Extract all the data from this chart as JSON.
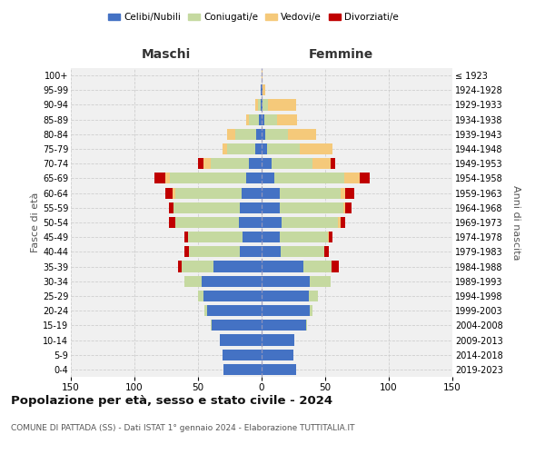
{
  "age_groups": [
    "0-4",
    "5-9",
    "10-14",
    "15-19",
    "20-24",
    "25-29",
    "30-34",
    "35-39",
    "40-44",
    "45-49",
    "50-54",
    "55-59",
    "60-64",
    "65-69",
    "70-74",
    "75-79",
    "80-84",
    "85-89",
    "90-94",
    "95-99",
    "100+"
  ],
  "birth_years": [
    "2019-2023",
    "2014-2018",
    "2009-2013",
    "2004-2008",
    "1999-2003",
    "1994-1998",
    "1989-1993",
    "1984-1988",
    "1979-1983",
    "1974-1978",
    "1969-1973",
    "1964-1968",
    "1959-1963",
    "1954-1958",
    "1949-1953",
    "1944-1948",
    "1939-1943",
    "1934-1938",
    "1929-1933",
    "1924-1928",
    "≤ 1923"
  ],
  "colors": {
    "celibi": "#4472c4",
    "coniugati": "#c5d9a0",
    "vedovi": "#f5c97a",
    "divorziati": "#c00000"
  },
  "maschi": {
    "celibi": [
      30,
      31,
      33,
      39,
      43,
      46,
      47,
      38,
      17,
      15,
      18,
      17,
      16,
      12,
      10,
      5,
      4,
      2,
      1,
      1,
      0
    ],
    "coniugati": [
      0,
      0,
      0,
      1,
      2,
      4,
      14,
      25,
      40,
      43,
      50,
      52,
      52,
      60,
      30,
      22,
      17,
      8,
      2,
      0,
      0
    ],
    "vedovi": [
      0,
      0,
      0,
      0,
      0,
      0,
      0,
      0,
      0,
      0,
      0,
      0,
      2,
      4,
      6,
      4,
      6,
      2,
      2,
      0,
      0
    ],
    "divorziati": [
      0,
      0,
      0,
      0,
      0,
      0,
      0,
      3,
      4,
      3,
      5,
      4,
      6,
      8,
      4,
      0,
      0,
      0,
      0,
      0,
      0
    ]
  },
  "femmine": {
    "celibi": [
      27,
      25,
      26,
      35,
      38,
      37,
      38,
      33,
      15,
      14,
      16,
      14,
      14,
      10,
      8,
      4,
      3,
      2,
      1,
      1,
      0
    ],
    "coniugati": [
      0,
      0,
      0,
      1,
      2,
      7,
      16,
      22,
      34,
      38,
      44,
      50,
      48,
      55,
      32,
      26,
      18,
      10,
      4,
      0,
      0
    ],
    "vedovi": [
      0,
      0,
      0,
      0,
      0,
      0,
      0,
      0,
      0,
      1,
      2,
      2,
      4,
      12,
      14,
      26,
      22,
      16,
      22,
      2,
      1
    ],
    "divorziati": [
      0,
      0,
      0,
      0,
      0,
      0,
      0,
      6,
      4,
      3,
      4,
      5,
      7,
      8,
      4,
      0,
      0,
      0,
      0,
      0,
      0
    ]
  },
  "xlim": 150,
  "title": "Popolazione per età, sesso e stato civile - 2024",
  "subtitle": "COMUNE DI PATTADA (SS) - Dati ISTAT 1° gennaio 2024 - Elaborazione TUTTITALIA.IT",
  "ylabel_left": "Fasce di età",
  "ylabel_right": "Anni di nascita",
  "xlabel_left": "Maschi",
  "xlabel_right": "Femmine",
  "legend_labels": [
    "Celibi/Nubili",
    "Coniugati/e",
    "Vedovi/e",
    "Divorziati/e"
  ],
  "bg_color": "#ffffff",
  "plot_bg_color": "#f0f0f0",
  "grid_color": "#cccccc"
}
